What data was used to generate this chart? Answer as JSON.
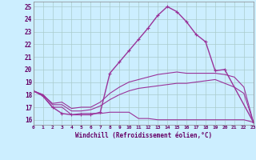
{
  "xlabel": "Windchill (Refroidissement éolien,°C)",
  "bg_color": "#cceeff",
  "grid_color": "#aacccc",
  "line_color": "#993399",
  "x_ticks": [
    0,
    1,
    2,
    3,
    4,
    5,
    6,
    7,
    8,
    9,
    10,
    11,
    12,
    13,
    14,
    15,
    16,
    17,
    18,
    19,
    20,
    21,
    22,
    23
  ],
  "ylim": [
    15.6,
    25.4
  ],
  "xlim": [
    0,
    23
  ],
  "y_ticks": [
    16,
    17,
    18,
    19,
    20,
    21,
    22,
    23,
    24,
    25
  ],
  "series": [
    {
      "x": [
        0,
        1,
        2,
        3,
        4,
        5,
        6,
        7,
        8,
        9,
        10,
        11,
        12,
        13,
        14,
        15,
        16,
        17,
        18,
        19,
        20,
        21,
        22,
        23
      ],
      "y": [
        18.3,
        17.9,
        17.0,
        17.0,
        16.4,
        16.5,
        16.5,
        16.5,
        16.6,
        16.6,
        16.6,
        16.1,
        16.1,
        16.0,
        16.0,
        16.0,
        16.0,
        16.0,
        16.0,
        16.0,
        16.0,
        16.0,
        16.0,
        15.8
      ],
      "marker": false,
      "lw": 0.8
    },
    {
      "x": [
        0,
        1,
        2,
        3,
        4,
        5,
        6,
        7,
        8,
        9,
        10,
        11,
        12,
        13,
        14,
        15,
        16,
        17,
        18,
        19,
        20,
        21,
        22,
        23
      ],
      "y": [
        18.3,
        18.0,
        17.2,
        17.2,
        16.7,
        16.7,
        16.8,
        17.1,
        17.6,
        18.0,
        18.3,
        18.5,
        18.6,
        18.7,
        18.8,
        18.9,
        18.9,
        19.0,
        19.1,
        19.2,
        18.9,
        18.6,
        18.1,
        15.8
      ],
      "marker": false,
      "lw": 0.8
    },
    {
      "x": [
        0,
        1,
        2,
        3,
        4,
        5,
        6,
        7,
        8,
        9,
        10,
        11,
        12,
        13,
        14,
        15,
        16,
        17,
        18,
        19,
        20,
        21,
        22,
        23
      ],
      "y": [
        18.3,
        18.0,
        17.3,
        17.4,
        16.9,
        17.0,
        17.0,
        17.4,
        18.1,
        18.6,
        19.0,
        19.2,
        19.4,
        19.6,
        19.7,
        19.8,
        19.7,
        19.7,
        19.7,
        19.7,
        19.6,
        19.4,
        18.6,
        15.8
      ],
      "marker": false,
      "lw": 0.8
    },
    {
      "x": [
        0,
        1,
        2,
        3,
        4,
        5,
        6,
        7,
        8,
        9,
        10,
        11,
        12,
        13,
        14,
        15,
        16,
        17,
        18,
        19,
        20,
        21,
        22,
        23
      ],
      "y": [
        18.3,
        17.9,
        17.0,
        16.5,
        16.4,
        16.4,
        16.4,
        16.6,
        19.7,
        20.6,
        21.5,
        22.4,
        23.3,
        24.3,
        25.0,
        24.6,
        23.8,
        22.8,
        22.2,
        19.9,
        20.0,
        null,
        null,
        15.8
      ],
      "marker": true,
      "lw": 1.0
    }
  ]
}
